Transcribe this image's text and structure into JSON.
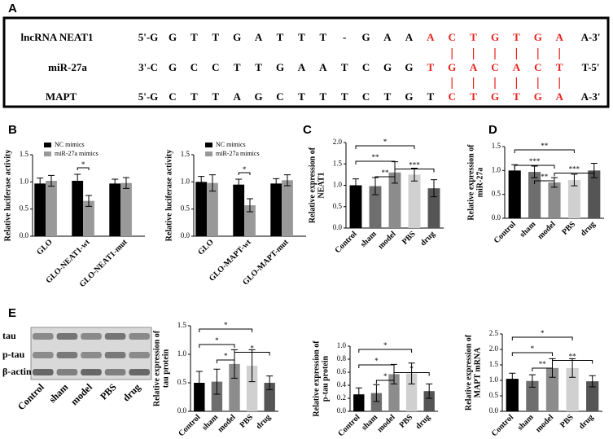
{
  "panel_labels": [
    "A",
    "B",
    "C",
    "D",
    "E"
  ],
  "sequence_alignment": {
    "rows": [
      {
        "label": "lncRNA NEAT1",
        "prefix": "5'-G",
        "sequence": [
          "G",
          "T",
          "T",
          "G",
          "A",
          "T",
          "T",
          "T",
          "-",
          "G",
          "A",
          "A"
        ],
        "highlight": [
          "A",
          "C",
          "T",
          "G",
          "T",
          "G",
          "A"
        ],
        "suffix": "A-3'"
      },
      {
        "label": "miR-27a",
        "prefix": "3'-C",
        "sequence": [
          "G",
          "C",
          "C",
          "T",
          "T",
          "G",
          "A",
          "A",
          "T",
          "C",
          "G",
          "G"
        ],
        "highlight": [
          "T",
          "G",
          "A",
          "C",
          "A",
          "C",
          "T"
        ],
        "suffix": "T-5'"
      },
      {
        "label": "MAPT",
        "prefix": "5'-G",
        "sequence": [
          "C",
          "T",
          "T",
          "A",
          "G",
          "C",
          "T",
          "T",
          "T",
          "C",
          "T",
          "G",
          "T"
        ],
        "highlight": [
          "C",
          "T",
          "G",
          "T",
          "G",
          "A"
        ],
        "suffix": "A-3'"
      }
    ]
  },
  "western_blot": {
    "bands": [
      "tau",
      "p-tau",
      "β-actin"
    ],
    "lanes": [
      "Control",
      "sham",
      "model",
      "PBS",
      "drug"
    ]
  },
  "chart_data": [
    {
      "type": "bar",
      "ylabel": [
        "Relative luciferase activity"
      ],
      "categories": [
        "GLO",
        "GLO-NEAT1-wt",
        "GLO-NEAT1-mut"
      ],
      "series": [
        {
          "name": "NC mimics",
          "color": "#000000",
          "values": [
            0.97,
            1.02,
            0.97
          ],
          "errors": [
            0.1,
            0.12,
            0.08
          ]
        },
        {
          "name": "miR-27a mimics",
          "color": "#999999",
          "values": [
            1.02,
            0.65,
            0.98
          ],
          "errors": [
            0.1,
            0.1,
            0.1
          ]
        }
      ],
      "ylim": [
        0,
        1.5
      ],
      "yticks": [
        {
          "value": 0,
          "label": "0.0"
        },
        {
          "value": 0.5,
          "label": "0.5"
        },
        {
          "value": 1,
          "label": "1.0"
        },
        {
          "value": 1.5,
          "label": "1.5"
        }
      ],
      "significance": [
        {
          "group": "GLO-NEAT1-wt",
          "label": "*"
        }
      ]
    },
    {
      "type": "bar",
      "ylabel": [
        "Relative luciferase activity"
      ],
      "categories": [
        "GLO",
        "GLO-MAPT-wt",
        "GLO-MAPT-mut"
      ],
      "series": [
        {
          "name": "NC mimics",
          "color": "#000000",
          "values": [
            1.0,
            0.95,
            0.97
          ],
          "errors": [
            0.1,
            0.1,
            0.09
          ]
        },
        {
          "name": "miR-27a mimics",
          "color": "#999999",
          "values": [
            0.98,
            0.57,
            1.03
          ],
          "errors": [
            0.15,
            0.12,
            0.1
          ]
        }
      ],
      "ylim": [
        0,
        1.5
      ],
      "yticks": [
        {
          "value": 0,
          "label": "0.0"
        },
        {
          "value": 0.5,
          "label": "0.5"
        },
        {
          "value": 1,
          "label": "1.0"
        },
        {
          "value": 1.5,
          "label": "1.5"
        }
      ],
      "significance": [
        {
          "group": "GLO-MAPT-wt",
          "label": "*"
        }
      ]
    },
    {
      "type": "bar",
      "ylabel": [
        "Relative expression of",
        "NEAT1"
      ],
      "categories": [
        "Control",
        "sham",
        "model",
        "PBS",
        "drug"
      ],
      "values": [
        1.0,
        0.98,
        1.3,
        1.25,
        0.93
      ],
      "errors": [
        0.15,
        0.2,
        0.25,
        0.15,
        0.2
      ],
      "colors": [
        "#000000",
        "#6e6e6e",
        "#8c8c8c",
        "#d0d0d0",
        "#555555"
      ],
      "ylim": [
        0,
        2
      ],
      "yticks": [
        {
          "value": 0,
          "label": "0.0"
        },
        {
          "value": 0.5,
          "label": "0.5"
        },
        {
          "value": 1,
          "label": "1.0"
        },
        {
          "value": 1.5,
          "label": "1.5"
        },
        {
          "value": 2,
          "label": "2.0"
        }
      ],
      "significance": [
        {
          "between": [
            "Control",
            "PBS"
          ],
          "label": "*"
        },
        {
          "between": [
            "Control",
            "model"
          ],
          "label": "**"
        },
        {
          "between": [
            "sham",
            "model"
          ],
          "label": "**"
        },
        {
          "between": [
            "model",
            "drug"
          ],
          "label": "***"
        }
      ]
    },
    {
      "type": "bar",
      "ylabel": [
        "Relative expression of",
        "miR-27a"
      ],
      "categories": [
        "Control",
        "sham",
        "model",
        "PBS",
        "drug"
      ],
      "values": [
        1.0,
        0.97,
        0.75,
        0.8,
        1.0
      ],
      "errors": [
        0.12,
        0.12,
        0.1,
        0.12,
        0.15
      ],
      "colors": [
        "#000000",
        "#6e6e6e",
        "#8c8c8c",
        "#d0d0d0",
        "#555555"
      ],
      "ylim": [
        0,
        1.5
      ],
      "yticks": [
        {
          "value": 0,
          "label": "0.0"
        },
        {
          "value": 0.5,
          "label": "0.5"
        },
        {
          "value": 1,
          "label": "1.0"
        },
        {
          "value": 1.5,
          "label": "1.5"
        }
      ],
      "significance": [
        {
          "between": [
            "Control",
            "PBS"
          ],
          "label": "**"
        },
        {
          "between": [
            "Control",
            "model"
          ],
          "label": "***"
        },
        {
          "between": [
            "sham",
            "model"
          ],
          "label": "**"
        },
        {
          "between": [
            "model",
            "drug"
          ],
          "label": "***"
        }
      ]
    },
    {
      "type": "bar",
      "ylabel": [
        "Relative expression of",
        "tau protein"
      ],
      "categories": [
        "Control",
        "sham",
        "model",
        "PBS",
        "drug"
      ],
      "values": [
        0.5,
        0.52,
        0.83,
        0.8,
        0.5
      ],
      "errors": [
        0.2,
        0.22,
        0.25,
        0.28,
        0.12
      ],
      "colors": [
        "#000000",
        "#6e6e6e",
        "#8c8c8c",
        "#d0d0d0",
        "#555555"
      ],
      "ylim": [
        0,
        1.5
      ],
      "yticks": [
        {
          "value": 0,
          "label": "0.0"
        },
        {
          "value": 0.5,
          "label": "0.5"
        },
        {
          "value": 1,
          "label": "1.0"
        },
        {
          "value": 1.5,
          "label": "1.5"
        }
      ],
      "significance": [
        {
          "between": [
            "Control",
            "PBS"
          ],
          "label": "*"
        },
        {
          "between": [
            "Control",
            "model"
          ],
          "label": "*"
        },
        {
          "between": [
            "sham",
            "model"
          ],
          "label": "*"
        },
        {
          "between": [
            "model",
            "drug"
          ],
          "label": "*"
        }
      ]
    },
    {
      "type": "bar",
      "ylabel": [
        "Relative expression of",
        "p-tau protein"
      ],
      "categories": [
        "Control",
        "sham",
        "model",
        "PBS",
        "drug"
      ],
      "values": [
        0.26,
        0.28,
        0.57,
        0.58,
        0.31
      ],
      "errors": [
        0.1,
        0.13,
        0.15,
        0.16,
        0.11
      ],
      "colors": [
        "#000000",
        "#6e6e6e",
        "#8c8c8c",
        "#d0d0d0",
        "#555555"
      ],
      "ylim": [
        0,
        1
      ],
      "yticks": [
        {
          "value": 0,
          "label": "0.0"
        },
        {
          "value": 0.2,
          "label": "0.2"
        },
        {
          "value": 0.4,
          "label": "0.4"
        },
        {
          "value": 0.6,
          "label": "0.6"
        },
        {
          "value": 0.8,
          "label": "0.8"
        },
        {
          "value": 1,
          "label": "1.0"
        }
      ],
      "significance": [
        {
          "between": [
            "Control",
            "PBS"
          ],
          "label": "*"
        },
        {
          "between": [
            "Control",
            "model"
          ],
          "label": "*"
        },
        {
          "between": [
            "sham",
            "model"
          ],
          "label": "*"
        },
        {
          "between": [
            "model",
            "drug"
          ],
          "label": "*"
        }
      ]
    },
    {
      "type": "bar",
      "ylabel": [
        "Relative expression of",
        "MAPT mRNA"
      ],
      "categories": [
        "Control",
        "sham",
        "model",
        "PBS",
        "drug"
      ],
      "values": [
        1.05,
        0.98,
        1.4,
        1.4,
        0.97
      ],
      "errors": [
        0.18,
        0.2,
        0.3,
        0.3,
        0.18
      ],
      "colors": [
        "#000000",
        "#6e6e6e",
        "#8c8c8c",
        "#d0d0d0",
        "#555555"
      ],
      "ylim": [
        0,
        2.5
      ],
      "yticks": [
        {
          "value": 0,
          "label": "0.0"
        },
        {
          "value": 0.5,
          "label": "0.5"
        },
        {
          "value": 1,
          "label": "1.0"
        },
        {
          "value": 1.5,
          "label": "1.5"
        },
        {
          "value": 2,
          "label": "2.0"
        },
        {
          "value": 2.5,
          "label": "2.5"
        }
      ],
      "significance": [
        {
          "between": [
            "Control",
            "PBS"
          ],
          "label": "*"
        },
        {
          "between": [
            "Control",
            "model"
          ],
          "label": "*"
        },
        {
          "between": [
            "sham",
            "model"
          ],
          "label": "**"
        },
        {
          "between": [
            "model",
            "drug"
          ],
          "label": "**"
        }
      ]
    }
  ]
}
